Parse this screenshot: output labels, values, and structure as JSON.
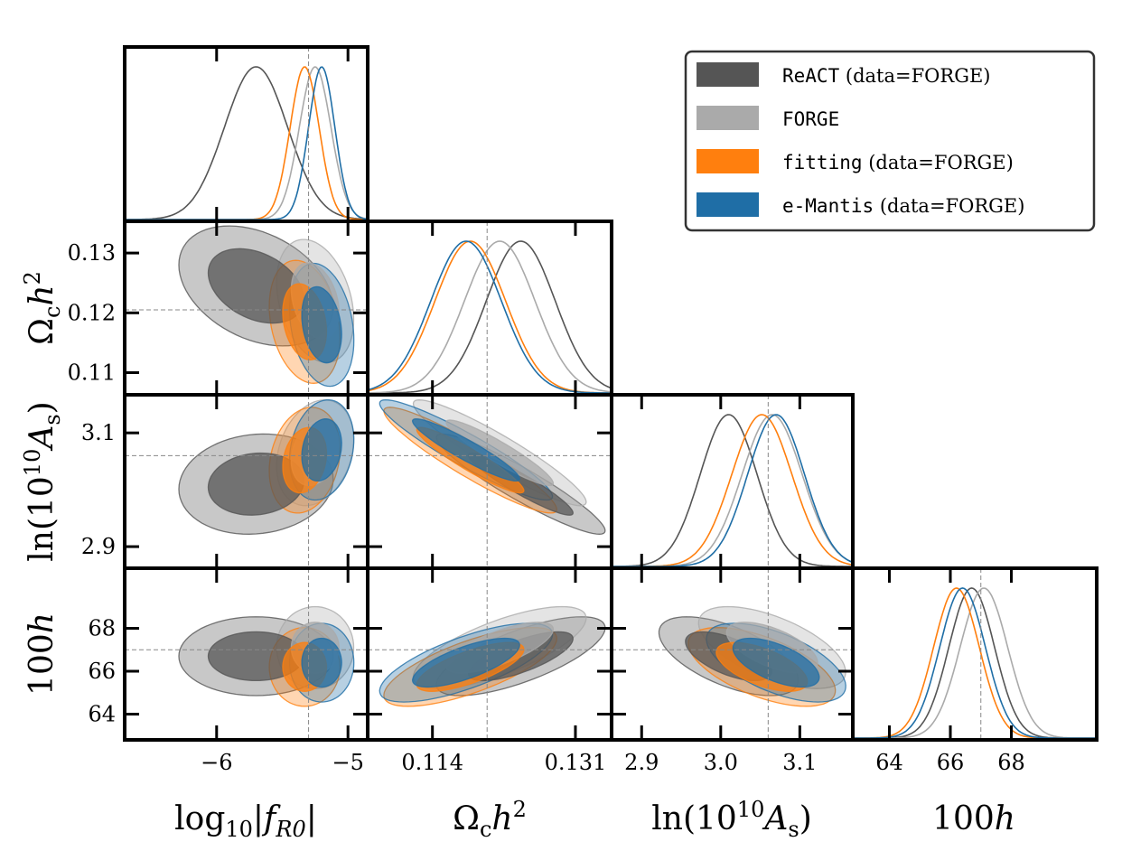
{
  "chart_data": {
    "type": "corner",
    "parameters": [
      {
        "id": "logfR0",
        "label_parts": [
          "log",
          "10",
          "|f",
          "R0",
          "|"
        ],
        "range": [
          -6.7,
          -4.85
        ],
        "ticks": [
          -6,
          -5
        ],
        "tick_labels": [
          "−6",
          "−5"
        ],
        "truth": -5.3
      },
      {
        "id": "omch2",
        "label_parts": [
          "Ω",
          "c",
          "h",
          "2"
        ],
        "range": [
          0.1063,
          0.1353
        ],
        "ticks": [
          0.11,
          0.12,
          0.13
        ],
        "tick_labels": [
          "0.11",
          "0.12",
          "0.13"
        ],
        "x_ticks": [
          0.114,
          0.131
        ],
        "x_tick_labels": [
          "0.114",
          "0.131"
        ],
        "truth": 0.1205
      },
      {
        "id": "lnAs",
        "label_parts": [
          "ln(10",
          "10",
          "A",
          "s",
          ")"
        ],
        "range": [
          2.862,
          3.167
        ],
        "ticks": [
          2.9,
          3.0,
          3.1
        ],
        "tick_labels": [
          "2.9",
          "3.0",
          "3.1"
        ],
        "y_ticks": [
          2.9,
          3.1
        ],
        "y_tick_labels": [
          "2.9",
          "3.1"
        ],
        "truth": 3.06
      },
      {
        "id": "h100",
        "label_parts": [
          "100",
          "h"
        ],
        "range": [
          62.8,
          70.8
        ],
        "ticks": [
          64,
          66,
          68
        ],
        "tick_labels": [
          "64",
          "66",
          "68"
        ],
        "truth": 67.0
      }
    ],
    "series": [
      {
        "name": "ReACT",
        "legend_code": "ReACT",
        "legend_suffix": " (data=FORGE)",
        "color": "#555555",
        "mean": [
          -5.7,
          0.1245,
          3.01,
          66.7
        ],
        "std": [
          0.24,
          0.0041,
          0.036,
          0.75
        ],
        "corr": {
          "0-1": -0.35,
          "0-2": 0.1,
          "0-3": 0.0,
          "1-2": -0.93,
          "1-3": 0.72,
          "2-3": -0.6
        }
      },
      {
        "name": "FORGE",
        "legend_code": "FORGE",
        "legend_suffix": "",
        "color": "#aaaaaa",
        "mean": [
          -5.25,
          0.122,
          3.065,
          67.1
        ],
        "std": [
          0.12,
          0.0042,
          0.038,
          0.78
        ],
        "corr": {
          "0-1": -0.3,
          "0-2": 0.25,
          "0-3": 0.0,
          "1-2": -0.93,
          "1-3": 0.72,
          "2-3": -0.6
        }
      },
      {
        "name": "fitting",
        "legend_code": "fitting",
        "legend_suffix": " (data=FORGE)",
        "color": "#ff7f0e",
        "mean": [
          -5.33,
          0.1185,
          3.052,
          66.2
        ],
        "std": [
          0.11,
          0.0042,
          0.038,
          0.75
        ],
        "corr": {
          "0-1": -0.25,
          "0-2": 0.2,
          "0-3": 0.0,
          "1-2": -0.93,
          "1-3": 0.72,
          "2-3": -0.6
        }
      },
      {
        "name": "e-Mantis",
        "legend_code": "e-Mantis",
        "legend_suffix": " (data=FORGE)",
        "color": "#1f6ea6",
        "mean": [
          -5.2,
          0.118,
          3.07,
          66.4
        ],
        "std": [
          0.1,
          0.0042,
          0.036,
          0.75
        ],
        "corr": {
          "0-1": -0.25,
          "0-2": 0.2,
          "0-3": 0.0,
          "1-2": -0.93,
          "1-3": 0.72,
          "2-3": -0.6
        }
      }
    ],
    "legend_position": "top-right",
    "contour_levels": [
      "68%",
      "95%"
    ],
    "truth_lines": "dashed grey"
  }
}
